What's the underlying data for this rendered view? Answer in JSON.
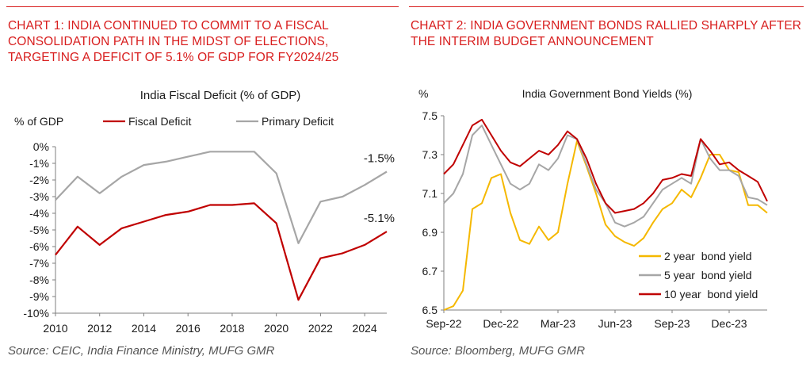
{
  "colors": {
    "accent": "#d81e1e",
    "fiscal": "#c00000",
    "primary": "#a6a6a6",
    "y2": "#f5b800",
    "y5": "#a6a6a6",
    "y10": "#c00000"
  },
  "chart1": {
    "heading": "CHART 1: INDIA CONTINUED TO COMMIT TO A FISCAL CONSOLIDATION PATH IN THE MIDST OF ELECTIONS, TARGETING A DEFICIT OF 5.1% OF GDP FOR FY2024/25",
    "source": "Source: CEIC, India Finance Ministry, MUFG GMR"
  },
  "chart2": {
    "heading": "CHART 2: INDIA GOVERNMENT BONDS RALLIED SHARPLY AFTER THE INTERIM BUDGET ANNOUNCEMENT",
    "source": "Source: Bloomberg, MUFG GMR"
  },
  "chart_data": [
    {
      "type": "line",
      "title": "India Fiscal Deficit (% of GDP)",
      "ylabel": "% of GDP",
      "xlabel": "",
      "legend": "top",
      "ylim": [
        -10,
        0
      ],
      "xlim": [
        2010,
        2025
      ],
      "yticks": [
        "0%",
        "-1%",
        "-2%",
        "-3%",
        "-4%",
        "-5%",
        "-6%",
        "-7%",
        "-8%",
        "-9%",
        "-10%"
      ],
      "xticks": [
        "2010",
        "2012",
        "2014",
        "2016",
        "2018",
        "2020",
        "2022",
        "2024"
      ],
      "x": [
        2010,
        2011,
        2012,
        2013,
        2014,
        2015,
        2016,
        2017,
        2018,
        2019,
        2020,
        2021,
        2022,
        2023,
        2024,
        2025
      ],
      "series": [
        {
          "name": "Fiscal Deficit",
          "values": [
            -6.5,
            -4.8,
            -5.9,
            -4.9,
            -4.5,
            -4.1,
            -3.9,
            -3.5,
            -3.5,
            -3.4,
            -4.6,
            -9.2,
            -6.7,
            -6.4,
            -5.9,
            -5.1
          ],
          "end_label": "-5.1%"
        },
        {
          "name": "Primary Deficit",
          "values": [
            -3.2,
            -1.8,
            -2.8,
            -1.8,
            -1.1,
            -0.9,
            -0.6,
            -0.3,
            -0.3,
            -0.3,
            -1.6,
            -5.8,
            -3.3,
            -3.0,
            -2.3,
            -1.5
          ],
          "end_label": "-1.5%"
        }
      ]
    },
    {
      "type": "line",
      "title": "India Government Bond Yields (%)",
      "ylabel": "%",
      "xlabel": "",
      "legend": "bottom-right",
      "ylim": [
        6.5,
        7.5
      ],
      "xlim": [
        0,
        17
      ],
      "yticks": [
        "7.5",
        "7.3",
        "7.1",
        "6.9",
        "6.7",
        "6.5"
      ],
      "xticks": [
        "Sep-22",
        "Dec-22",
        "Mar-23",
        "Jun-23",
        "Sep-23",
        "Dec-23"
      ],
      "x": [
        0,
        0.5,
        1,
        1.5,
        2,
        2.5,
        3,
        3.5,
        4,
        4.5,
        5,
        5.5,
        6,
        6.5,
        7,
        7.5,
        8,
        8.5,
        9,
        9.5,
        10,
        10.5,
        11,
        11.5,
        12,
        12.5,
        13,
        13.5,
        14,
        14.5,
        15,
        15.5,
        16,
        16.5,
        17
      ],
      "series": [
        {
          "name": "2 year  bond yield",
          "values": [
            6.5,
            6.52,
            6.6,
            7.02,
            7.05,
            7.18,
            7.2,
            7.0,
            6.86,
            6.84,
            6.93,
            6.86,
            6.9,
            7.15,
            7.37,
            7.24,
            7.1,
            6.94,
            6.88,
            6.85,
            6.83,
            6.87,
            6.95,
            7.02,
            7.05,
            7.12,
            7.08,
            7.18,
            7.3,
            7.3,
            7.22,
            7.21,
            7.04,
            7.04,
            7.0
          ]
        },
        {
          "name": "5 year  bond yield",
          "values": [
            7.05,
            7.1,
            7.2,
            7.4,
            7.45,
            7.35,
            7.25,
            7.15,
            7.12,
            7.15,
            7.25,
            7.22,
            7.28,
            7.4,
            7.38,
            7.25,
            7.12,
            7.05,
            6.95,
            6.93,
            6.95,
            6.98,
            7.05,
            7.12,
            7.15,
            7.18,
            7.15,
            7.38,
            7.28,
            7.22,
            7.22,
            7.19,
            7.08,
            7.07,
            7.04
          ]
        },
        {
          "name": "10 year  bond yield",
          "values": [
            7.2,
            7.25,
            7.35,
            7.45,
            7.48,
            7.4,
            7.32,
            7.26,
            7.24,
            7.28,
            7.32,
            7.3,
            7.35,
            7.42,
            7.38,
            7.28,
            7.15,
            7.05,
            7.0,
            7.01,
            7.02,
            7.05,
            7.1,
            7.17,
            7.18,
            7.2,
            7.19,
            7.38,
            7.32,
            7.25,
            7.26,
            7.22,
            7.19,
            7.16,
            7.06
          ]
        }
      ]
    }
  ]
}
